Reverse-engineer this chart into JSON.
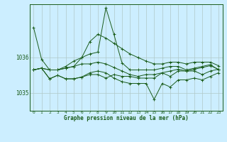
{
  "xlabel": "Graphe pression niveau de la mer (hPa)",
  "background_color": "#cceeff",
  "line_color": "#1a5c1a",
  "grid_color": "#b0c8c8",
  "x_ticks": [
    0,
    1,
    2,
    3,
    4,
    5,
    6,
    7,
    8,
    9,
    10,
    11,
    12,
    13,
    14,
    15,
    16,
    17,
    18,
    19,
    20,
    21,
    22,
    23
  ],
  "ylim": [
    1034.5,
    1037.5
  ],
  "ytick_positions": [
    1035.0,
    1036.0
  ],
  "series": [
    [
      1036.85,
      1035.95,
      1035.65,
      1035.65,
      1035.75,
      1035.9,
      1036.0,
      1036.1,
      1036.15,
      1037.4,
      1036.65,
      1035.85,
      1035.65,
      1035.65,
      1035.65,
      1035.65,
      1035.7,
      1035.75,
      1035.75,
      1035.65,
      1035.7,
      1035.75,
      1035.8,
      1035.65
    ],
    [
      1035.65,
      1035.7,
      1035.65,
      1035.65,
      1035.7,
      1035.75,
      1036.0,
      1036.45,
      1036.65,
      1036.55,
      1036.4,
      1036.25,
      1036.1,
      1036.0,
      1035.9,
      1035.82,
      1035.82,
      1035.87,
      1035.87,
      1035.82,
      1035.87,
      1035.87,
      1035.87,
      1035.77
    ],
    [
      1035.65,
      1035.7,
      1035.65,
      1035.65,
      1035.7,
      1035.75,
      1035.82,
      1035.82,
      1035.87,
      1035.82,
      1035.72,
      1035.62,
      1035.52,
      1035.47,
      1035.52,
      1035.52,
      1035.57,
      1035.62,
      1035.67,
      1035.62,
      1035.67,
      1035.72,
      1035.77,
      1035.67
    ],
    [
      1035.65,
      1035.7,
      1035.4,
      1035.5,
      1035.4,
      1035.4,
      1035.45,
      1035.57,
      1035.62,
      1035.57,
      1035.42,
      1035.32,
      1035.27,
      1035.27,
      1035.27,
      1034.82,
      1035.27,
      1035.17,
      1035.37,
      1035.37,
      1035.42,
      1035.37,
      1035.47,
      1035.57
    ],
    [
      1035.65,
      1035.7,
      1035.4,
      1035.5,
      1035.4,
      1035.4,
      1035.45,
      1035.52,
      1035.52,
      1035.42,
      1035.52,
      1035.47,
      1035.47,
      1035.42,
      1035.42,
      1035.42,
      1035.57,
      1035.47,
      1035.62,
      1035.62,
      1035.62,
      1035.52,
      1035.62,
      1035.67
    ]
  ]
}
